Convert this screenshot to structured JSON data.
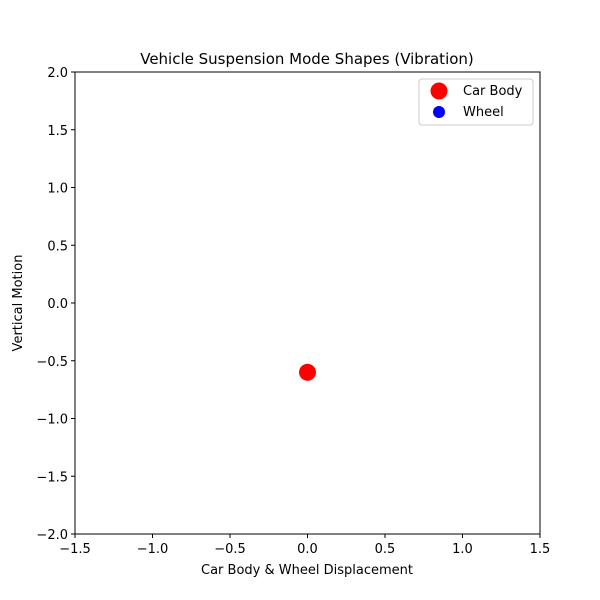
{
  "chart_data": {
    "type": "scatter",
    "title": "Vehicle Suspension Mode Shapes (Vibration)",
    "xlabel": "Car Body & Wheel Displacement",
    "ylabel": "Vertical Motion",
    "xlim": [
      -1.5,
      1.5
    ],
    "ylim": [
      -2.0,
      2.0
    ],
    "xticks": [
      -1.5,
      -1.0,
      -0.5,
      0.0,
      0.5,
      1.0,
      1.5
    ],
    "xtick_labels": [
      "−1.5",
      "−1.0",
      "−0.5",
      "0.0",
      "0.5",
      "1.0",
      "1.5"
    ],
    "yticks": [
      2.0,
      1.5,
      1.0,
      0.5,
      0.0,
      -0.5,
      -1.0,
      -1.5,
      -2.0
    ],
    "ytick_labels": [
      "2.0",
      "1.5",
      "1.0",
      "0.5",
      "0.0",
      "−0.5",
      "−1.0",
      "−1.5",
      "−2.0"
    ],
    "grid": false,
    "legend_position": "top-right",
    "series": [
      {
        "name": "Car Body",
        "color": "#ff0000",
        "marker_size": "large",
        "points": [
          {
            "x": 0.0,
            "y": -0.6
          }
        ]
      },
      {
        "name": "Wheel",
        "color": "#0000ff",
        "marker_size": "medium",
        "points": []
      }
    ]
  }
}
